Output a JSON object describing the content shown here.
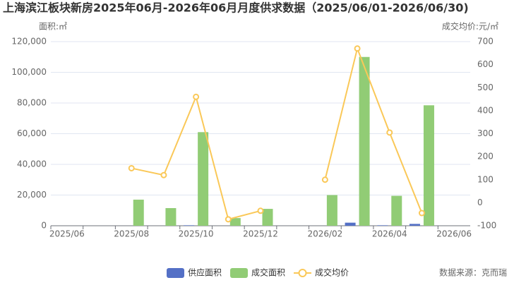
{
  "chart_data": {
    "type": "bar-line",
    "title": "上海滨江板块新房2025年06月-2026年06月月度供求数据（2025/06/01-2026/06/30)",
    "y_label": "面积:㎡",
    "y2_label": "成交均价:元/㎡",
    "source": "数据来源：克而瑞",
    "categories": [
      "2025/06",
      null,
      "2025/08",
      null,
      "2025/10",
      null,
      "2025/12",
      null,
      "2026/02",
      null,
      "2026/04",
      null,
      "2026/06"
    ],
    "series": [
      {
        "name": "供应面积",
        "type": "bar",
        "color": "#5470c6",
        "values": [
          0,
          0,
          0,
          0,
          300,
          0,
          0,
          0,
          0,
          2000,
          300,
          1200,
          0
        ]
      },
      {
        "name": "成交面积",
        "type": "bar",
        "color": "#91cc75",
        "values": [
          0,
          0,
          17000,
          11500,
          61000,
          5000,
          11000,
          0,
          20000,
          110000,
          19500,
          78500,
          0
        ]
      },
      {
        "name": "成交均价",
        "type": "line",
        "axis": "y2",
        "color": "#fac858",
        "values": [
          null,
          null,
          150,
          120,
          460,
          -72,
          -35,
          null,
          100,
          670,
          305,
          -45,
          null
        ]
      }
    ],
    "ylim": [
      0,
      120000
    ],
    "yticks": [
      0,
      {
        "value": 20000,
        "label": "20,000"
      },
      {
        "value": 40000,
        "label": "40,000"
      },
      {
        "value": 60000,
        "label": "60,000"
      },
      {
        "value": 80000,
        "label": "80,000"
      },
      {
        "value": 100000,
        "label": "100,000"
      },
      {
        "value": 120000,
        "label": "120,000"
      }
    ],
    "y2lim": [
      -100,
      700
    ],
    "y2ticks": [
      -100,
      0,
      100,
      200,
      300,
      400,
      500,
      600,
      700
    ],
    "grid": true
  }
}
